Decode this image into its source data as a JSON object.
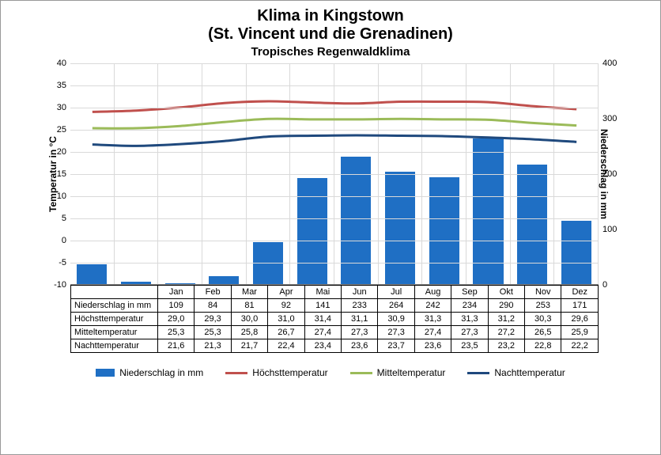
{
  "title_line1": "Klima in Kingstown",
  "title_line2": "(St. Vincent und die Grenadinen)",
  "subtitle": "Tropisches Regenwaldklima",
  "y_left_label": "Temperatur in °C",
  "y_right_label": "Niederschlag in mm",
  "months": [
    "Jan",
    "Feb",
    "Mar",
    "Apr",
    "Mai",
    "Jun",
    "Jul",
    "Aug",
    "Sep",
    "Okt",
    "Nov",
    "Dez"
  ],
  "y_left": {
    "min": -10,
    "max": 40,
    "step": 5
  },
  "y_right": {
    "min": 0,
    "max": 400,
    "step": 100
  },
  "series": {
    "precip": {
      "label": "Niederschlag in mm",
      "type": "bar",
      "color": "#1f6fc4",
      "values": [
        109,
        84,
        81,
        92,
        141,
        233,
        264,
        242,
        234,
        290,
        253,
        171
      ],
      "axis_scale_min": 80,
      "axis_scale_max": 400
    },
    "high": {
      "label": "Höchsttemperatur",
      "type": "line",
      "color": "#c0504d",
      "values": [
        29.0,
        29.3,
        30.0,
        31.0,
        31.4,
        31.1,
        30.9,
        31.3,
        31.3,
        31.2,
        30.3,
        29.6
      ]
    },
    "mean": {
      "label": "Mitteltemperatur",
      "type": "line",
      "color": "#9bbb59",
      "values": [
        25.3,
        25.3,
        25.8,
        26.7,
        27.4,
        27.3,
        27.3,
        27.4,
        27.3,
        27.2,
        26.5,
        25.9
      ]
    },
    "night": {
      "label": "Nachttemperatur",
      "type": "line",
      "color": "#1f497d",
      "values": [
        21.6,
        21.3,
        21.7,
        22.4,
        23.4,
        23.6,
        23.7,
        23.6,
        23.5,
        23.2,
        22.8,
        22.2
      ]
    }
  },
  "table_rows": [
    {
      "label": "Niederschlag in mm",
      "key": "precip",
      "decimals": 0
    },
    {
      "label": "Höchsttemperatur",
      "key": "high",
      "decimals": 1
    },
    {
      "label": "Mitteltemperatur",
      "key": "mean",
      "decimals": 1
    },
    {
      "label": "Nachttemperatur",
      "key": "night",
      "decimals": 1
    }
  ],
  "legend": [
    {
      "key": "precip",
      "type": "bar"
    },
    {
      "key": "high",
      "type": "line"
    },
    {
      "key": "mean",
      "type": "line"
    },
    {
      "key": "night",
      "type": "line"
    }
  ],
  "line_width": 3,
  "background_color": "#ffffff",
  "grid_color": "#d9d9d9"
}
